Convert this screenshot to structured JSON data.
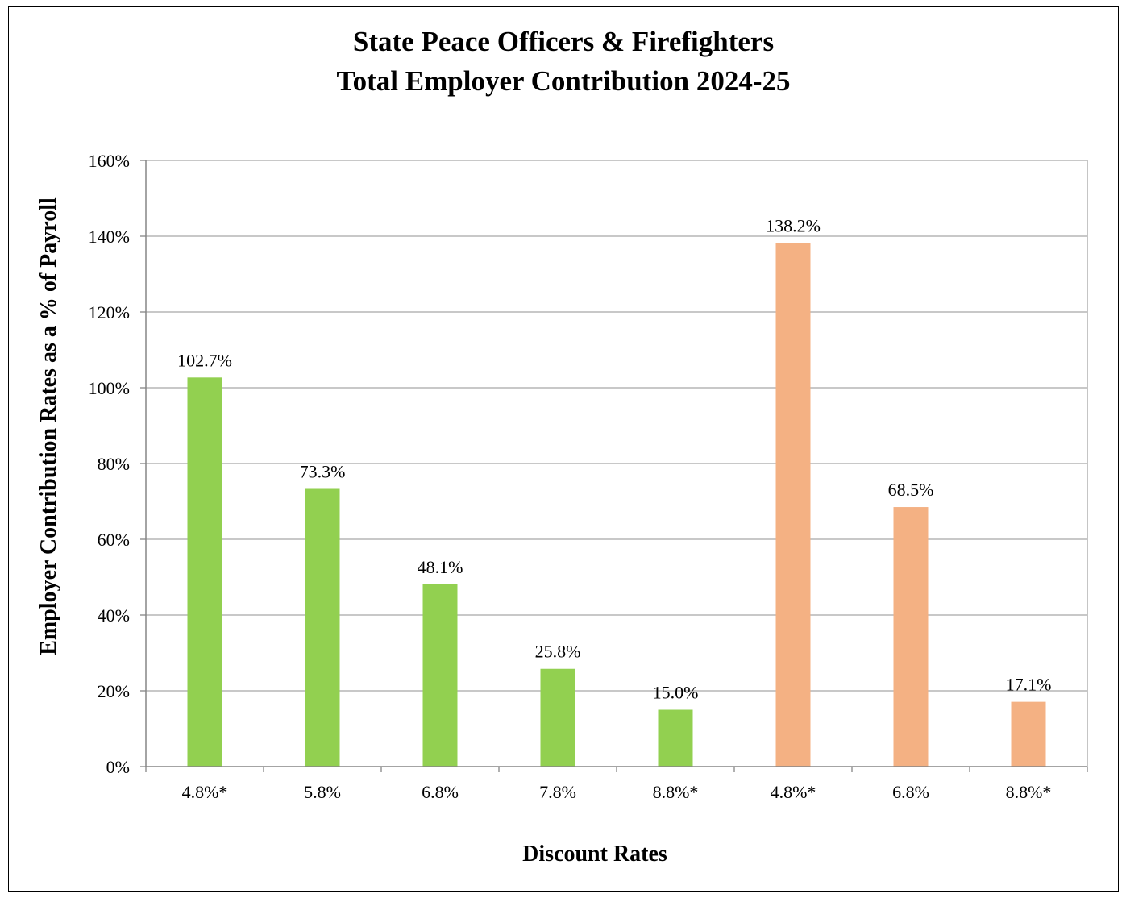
{
  "chart_data": {
    "type": "bar",
    "title": [
      "State Peace Officers & Firefighters",
      "Total Employer Contribution 2024-25"
    ],
    "xlabel": "Discount Rates",
    "ylabel": "Employer Contribution Rates as a % of Payroll",
    "ylim": [
      0,
      160
    ],
    "yticks": [
      0,
      20,
      40,
      60,
      80,
      100,
      120,
      140,
      160
    ],
    "ytick_labels": [
      "0%",
      "20%",
      "40%",
      "60%",
      "80%",
      "100%",
      "120%",
      "140%",
      "160%"
    ],
    "grid": true,
    "categories": [
      "4.8%*",
      "5.8%",
      "6.8%",
      "7.8%",
      "8.8%*",
      "4.8%*",
      "6.8%",
      "8.8%*"
    ],
    "values": [
      102.7,
      73.3,
      48.1,
      25.8,
      15.0,
      138.2,
      68.5,
      17.1
    ],
    "value_labels": [
      "102.7%",
      "73.3%",
      "48.1%",
      "25.8%",
      "15.0%",
      "138.2%",
      "68.5%",
      "17.1%"
    ],
    "bar_colors": [
      "#92d050",
      "#92d050",
      "#92d050",
      "#92d050",
      "#92d050",
      "#f4b183",
      "#f4b183",
      "#f4b183"
    ]
  }
}
